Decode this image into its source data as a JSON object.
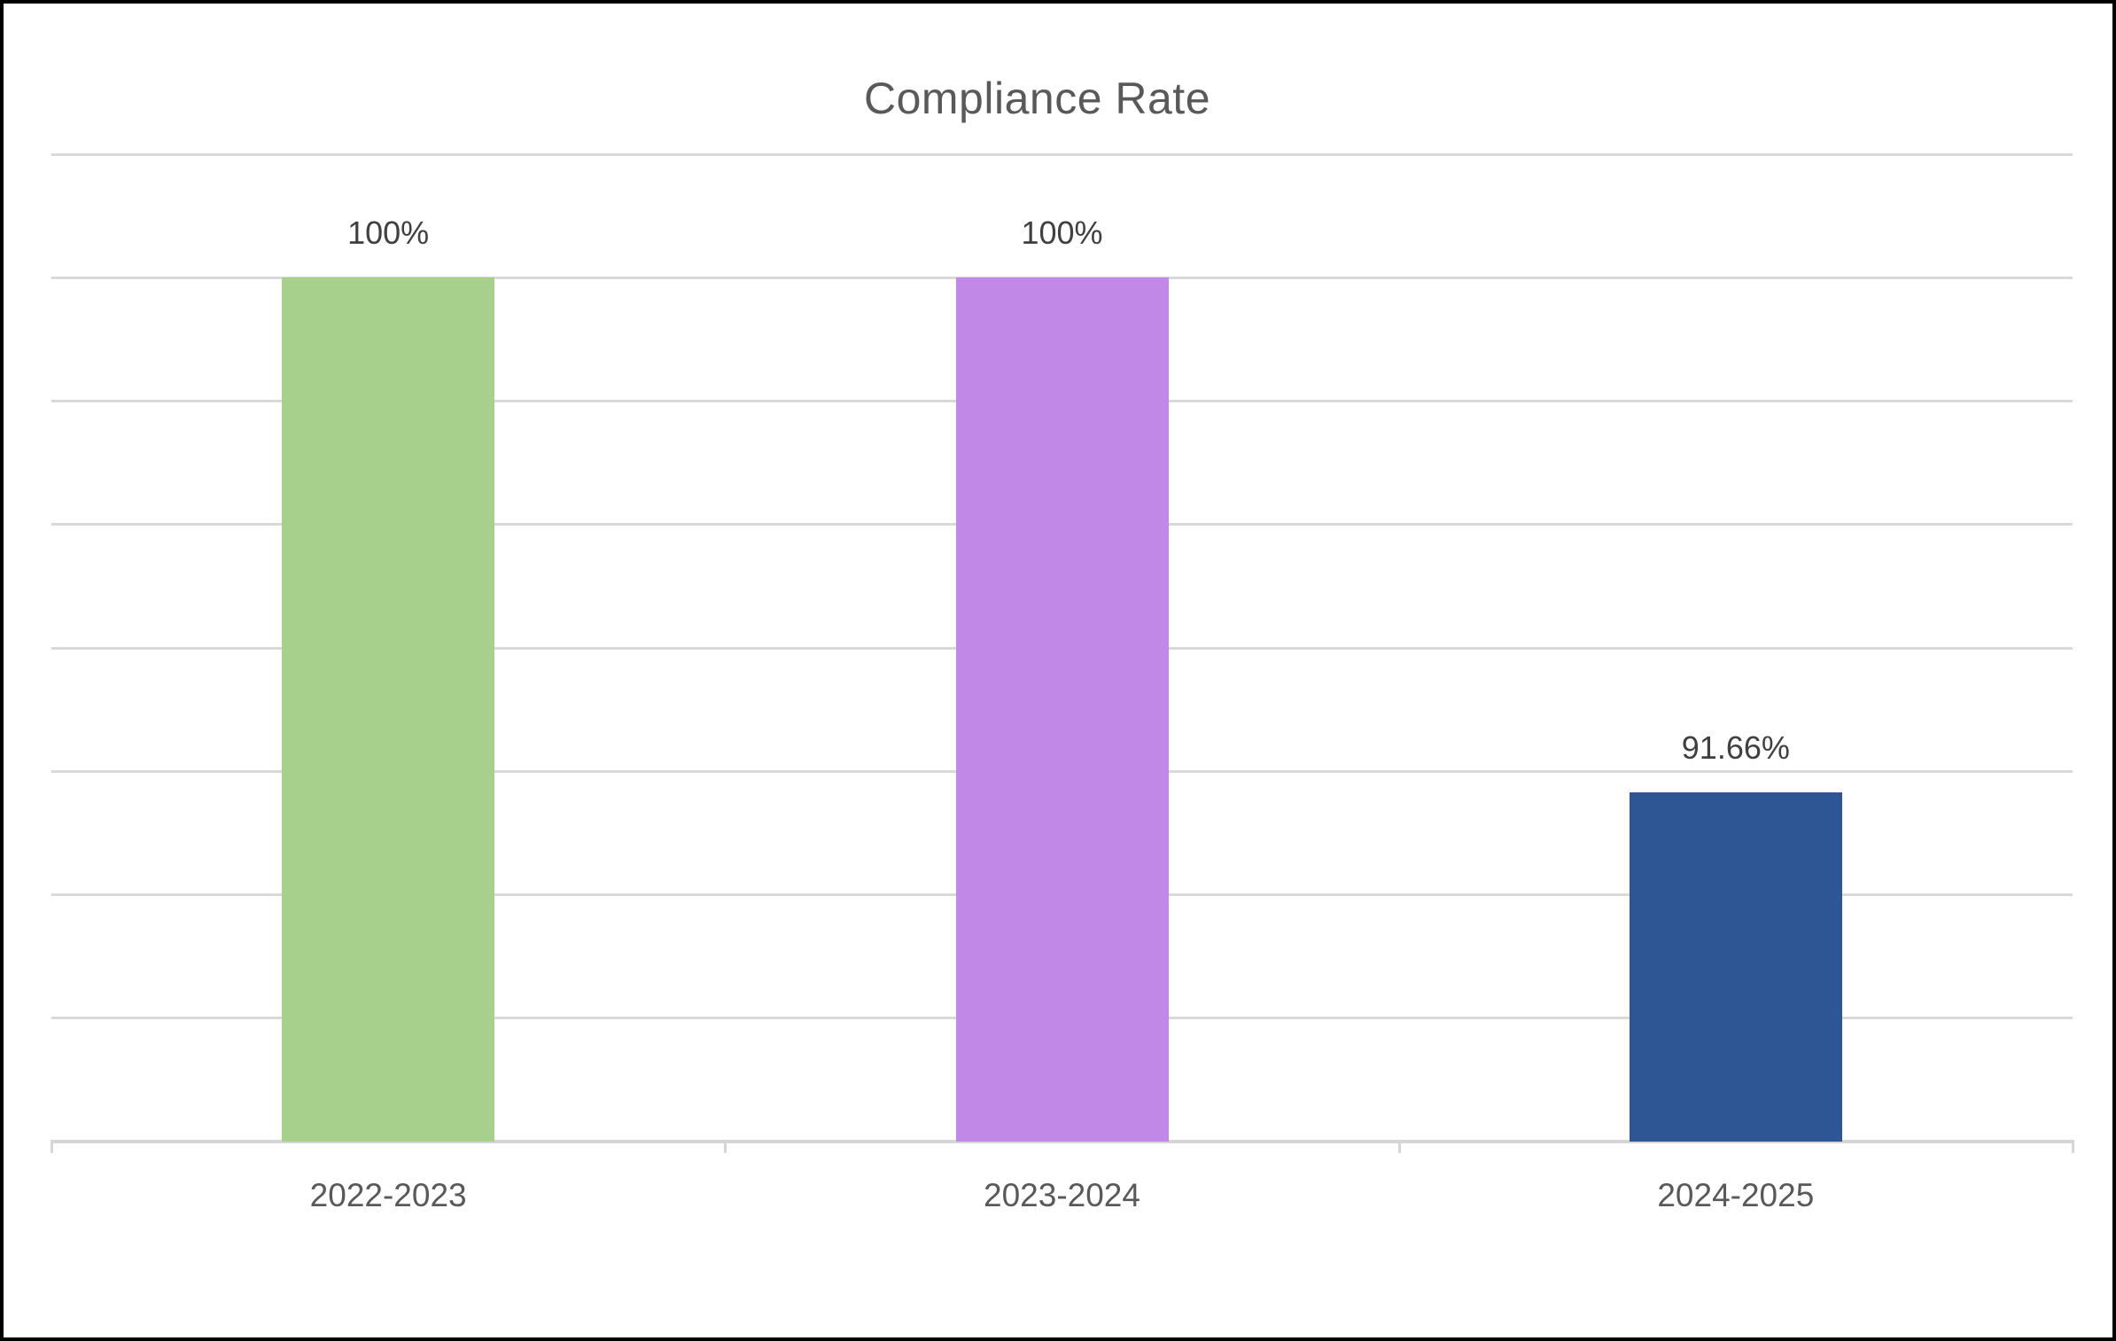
{
  "chart_data": {
    "type": "bar",
    "title": "Compliance Rate",
    "categories": [
      "2022-2023",
      "2023-2024",
      "2024-2025"
    ],
    "values": [
      100,
      100,
      91.66
    ],
    "data_labels": [
      "100%",
      "100%",
      "91.66%"
    ],
    "bar_colors": [
      "#a8d08d",
      "#c188e8",
      "#2f5694"
    ],
    "xlabel": "",
    "ylabel": "",
    "ylim": [
      86,
      102
    ],
    "grid_step": 2,
    "grid": true,
    "legend": false,
    "y_tick_labels_visible": false,
    "gridline_color": "#d9d9d9",
    "axis_line_color": "#d6d6d6",
    "title_color": "#595959",
    "data_label_color": "#404040",
    "category_label_color": "#595959"
  }
}
